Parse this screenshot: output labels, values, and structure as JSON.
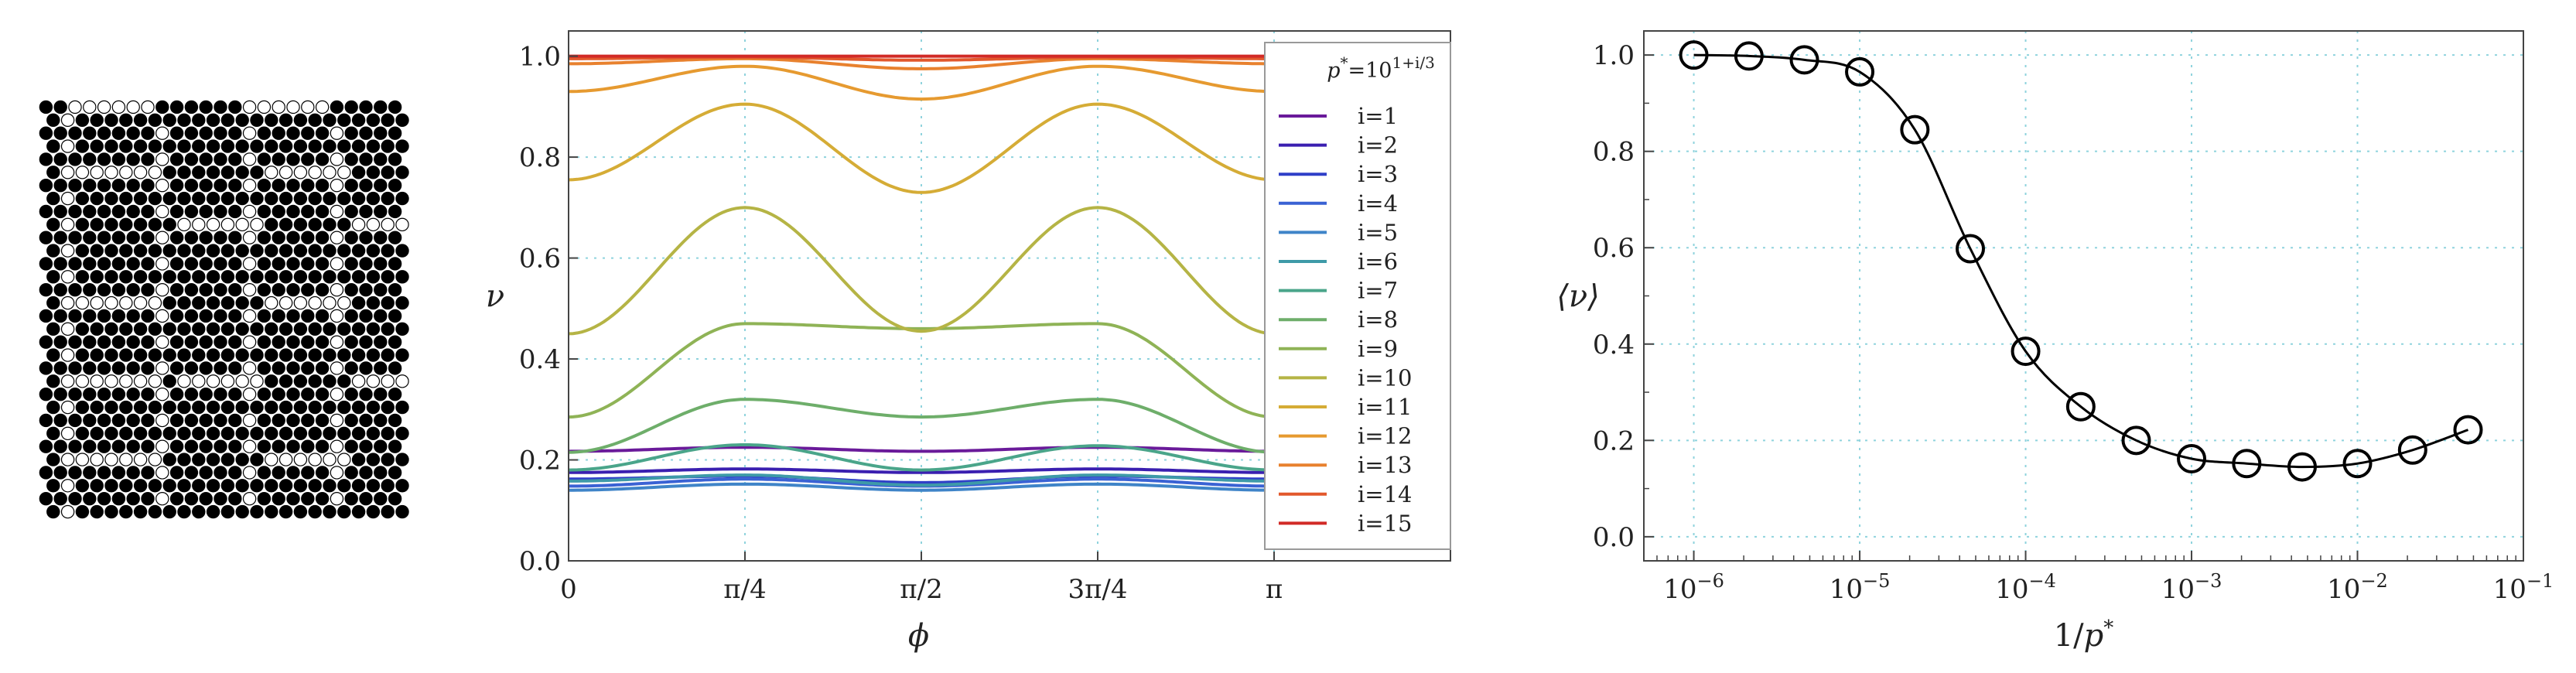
{
  "chart_data": [
    {
      "type": "image",
      "name": "lattice-configuration",
      "description_grid": {
        "cols": 25,
        "rows": 32
      }
    },
    {
      "type": "line",
      "xlabel": "ϕ",
      "ylabel": "ν",
      "xlim": [
        0,
        3.927
      ],
      "ylim": [
        0,
        1.05
      ],
      "xticks": [
        {
          "value": 0,
          "label": "0"
        },
        {
          "value": 0.7854,
          "label": "π/4"
        },
        {
          "value": 1.5708,
          "label": "π/2"
        },
        {
          "value": 2.3562,
          "label": "3π/4"
        },
        {
          "value": 3.1416,
          "label": "π"
        }
      ],
      "yticks": [
        {
          "value": 0,
          "label": "0.0"
        },
        {
          "value": 0.2,
          "label": "0.2"
        },
        {
          "value": 0.4,
          "label": "0.4"
        },
        {
          "value": 0.6,
          "label": "0.6"
        },
        {
          "value": 0.8,
          "label": "0.8"
        },
        {
          "value": 1.0,
          "label": "1.0"
        }
      ],
      "grid": true,
      "legend_title": "p*=10^{1+i/3}",
      "legend_position": "right",
      "series": [
        {
          "name": "i=1",
          "color": "#6a1a9a",
          "values": [
            0.217,
            0.225,
            0.217,
            0.225,
            0.217
          ]
        },
        {
          "name": "i=2",
          "color": "#3a1fb0",
          "values": [
            0.175,
            0.182,
            0.175,
            0.182,
            0.175
          ]
        },
        {
          "name": "i=3",
          "color": "#2f3fc8",
          "values": [
            0.162,
            0.168,
            0.155,
            0.168,
            0.162
          ]
        },
        {
          "name": "i=4",
          "color": "#3a62d4",
          "values": [
            0.148,
            0.162,
            0.148,
            0.162,
            0.148
          ]
        },
        {
          "name": "i=5",
          "color": "#3f84c8",
          "values": [
            0.14,
            0.152,
            0.14,
            0.152,
            0.14
          ]
        },
        {
          "name": "i=6",
          "color": "#3e9aa8",
          "values": [
            0.158,
            0.17,
            0.15,
            0.17,
            0.158
          ]
        },
        {
          "name": "i=7",
          "color": "#4aa58a",
          "values": [
            0.18,
            0.23,
            0.18,
            0.228,
            0.18
          ]
        },
        {
          "name": "i=8",
          "color": "#6eae6a",
          "values": [
            0.215,
            0.32,
            0.285,
            0.32,
            0.215
          ]
        },
        {
          "name": "i=9",
          "color": "#8fb356",
          "values": [
            0.285,
            0.47,
            0.46,
            0.47,
            0.285
          ]
        },
        {
          "name": "i=10",
          "color": "#b5b445",
          "values": [
            0.45,
            0.7,
            0.455,
            0.7,
            0.45
          ]
        },
        {
          "name": "i=11",
          "color": "#d5ac36",
          "values": [
            0.755,
            0.905,
            0.73,
            0.905,
            0.755
          ]
        },
        {
          "name": "i=12",
          "color": "#e69a30",
          "values": [
            0.93,
            0.98,
            0.915,
            0.98,
            0.93
          ]
        },
        {
          "name": "i=13",
          "color": "#e8812e",
          "values": [
            0.985,
            0.995,
            0.975,
            0.995,
            0.985
          ]
        },
        {
          "name": "i=14",
          "color": "#e2582c",
          "values": [
            0.995,
            0.998,
            0.992,
            0.998,
            0.995
          ]
        },
        {
          "name": "i=15",
          "color": "#d12a26",
          "values": [
            1.0,
            1.0,
            1.0,
            1.0,
            1.0
          ]
        }
      ],
      "x": [
        0,
        0.7854,
        1.5708,
        2.3562,
        3.1416
      ]
    },
    {
      "type": "line",
      "xlabel": "1/p*",
      "ylabel": "⟨ν⟩",
      "xscale": "log",
      "xlim": [
        5e-07,
        0.1
      ],
      "ylim": [
        -0.05,
        1.05
      ],
      "xticks": [
        {
          "value": 1e-06,
          "label": "10",
          "exp": "−6"
        },
        {
          "value": 1e-05,
          "label": "10",
          "exp": "−5"
        },
        {
          "value": 0.0001,
          "label": "10",
          "exp": "−4"
        },
        {
          "value": 0.001,
          "label": "10",
          "exp": "−3"
        },
        {
          "value": 0.01,
          "label": "10",
          "exp": "−2"
        },
        {
          "value": 0.1,
          "label": "10",
          "exp": "−1"
        }
      ],
      "yticks": [
        {
          "value": 0,
          "label": "0.0"
        },
        {
          "value": 0.2,
          "label": "0.2"
        },
        {
          "value": 0.4,
          "label": "0.4"
        },
        {
          "value": 0.6,
          "label": "0.6"
        },
        {
          "value": 0.8,
          "label": "0.8"
        },
        {
          "value": 1.0,
          "label": "1.0"
        }
      ],
      "grid": true,
      "series": [
        {
          "name": "markers",
          "x": [
            1e-06,
            2.15e-06,
            4.64e-06,
            1e-05,
            2.15e-05,
            4.64e-05,
            0.0001,
            0.000215,
            0.000464,
            0.001,
            0.00215,
            0.00464,
            0.01,
            0.0215,
            0.0464
          ],
          "values": [
            1.0,
            0.998,
            0.99,
            0.965,
            0.845,
            0.598,
            0.385,
            0.27,
            0.2,
            0.162,
            0.152,
            0.145,
            0.152,
            0.18,
            0.222
          ]
        }
      ]
    }
  ]
}
